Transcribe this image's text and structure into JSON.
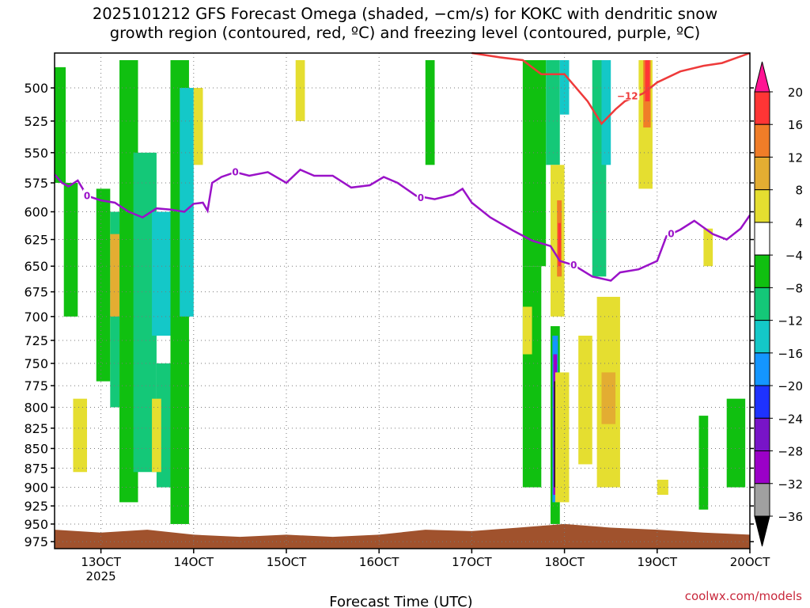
{
  "title_line1": "2025101212 GFS Forecast Omega (shaded, −cm/s) for KOKC with dendritic snow",
  "title_line2": "growth region (contoured, red, ºC) and freezing level (contoured, purple, ºC)",
  "credit": "coolwx.com/models",
  "colors": {
    "freezing_level": "#9a12c8",
    "dendritic": "#ee3a3a",
    "terrain": "#a0522d",
    "grid": "#7a7a7a"
  },
  "chart_data": {
    "type": "heatmap",
    "xlabel": "Forecast Time (UTC)",
    "x_ticks": [
      {
        "day": 13,
        "label": "13OCT",
        "sub": "2025"
      },
      {
        "day": 14,
        "label": "14OCT",
        "sub": ""
      },
      {
        "day": 15,
        "label": "15OCT",
        "sub": ""
      },
      {
        "day": 16,
        "label": "16OCT",
        "sub": ""
      },
      {
        "day": 17,
        "label": "17OCT",
        "sub": ""
      },
      {
        "day": 18,
        "label": "18OCT",
        "sub": ""
      },
      {
        "day": 19,
        "label": "19OCT",
        "sub": ""
      },
      {
        "day": 20,
        "label": "20OCT",
        "sub": ""
      }
    ],
    "xlim_days": [
      12.5,
      20
    ],
    "y_levels_hpa": [
      500,
      525,
      550,
      575,
      600,
      625,
      650,
      675,
      700,
      725,
      750,
      775,
      800,
      825,
      850,
      875,
      900,
      925,
      950,
      975
    ],
    "ylim_hpa": [
      475,
      985
    ],
    "y_scale": "log",
    "colorbar": {
      "labels": [
        "20",
        "16",
        "12",
        "8",
        "4",
        "−4",
        "−8",
        "−12",
        "−16",
        "−20",
        "−24",
        "−28",
        "−32",
        "−36"
      ],
      "colors": [
        "#ff1493",
        "#ff3535",
        "#f07d28",
        "#e3ad32",
        "#e5de30",
        "#ffffff",
        "#10c010",
        "#14c878",
        "#14c8c8",
        "#1496ff",
        "#1e32ff",
        "#7814c8",
        "#9b00c8",
        "#a0a0a0",
        "#000000"
      ]
    },
    "freezing_level_label": "0",
    "freezing_level_hpa": [
      [
        12.5,
        568
      ],
      [
        12.58,
        575
      ],
      [
        12.65,
        578
      ],
      [
        12.75,
        573
      ],
      [
        12.85,
        586
      ],
      [
        13.0,
        590
      ],
      [
        13.15,
        592
      ],
      [
        13.3,
        600
      ],
      [
        13.45,
        605
      ],
      [
        13.6,
        597
      ],
      [
        13.75,
        598
      ],
      [
        13.9,
        600
      ],
      [
        14.0,
        593
      ],
      [
        14.1,
        592
      ],
      [
        14.15,
        599
      ],
      [
        14.2,
        575
      ],
      [
        14.3,
        570
      ],
      [
        14.45,
        566
      ],
      [
        14.6,
        569
      ],
      [
        14.8,
        566
      ],
      [
        15.0,
        575
      ],
      [
        15.15,
        564
      ],
      [
        15.3,
        569
      ],
      [
        15.5,
        569
      ],
      [
        15.7,
        579
      ],
      [
        15.9,
        577
      ],
      [
        16.05,
        570
      ],
      [
        16.2,
        575
      ],
      [
        16.4,
        586
      ],
      [
        16.6,
        589
      ],
      [
        16.8,
        585
      ],
      [
        16.9,
        580
      ],
      [
        17.0,
        592
      ],
      [
        17.2,
        605
      ],
      [
        17.45,
        617
      ],
      [
        17.65,
        626
      ],
      [
        17.85,
        631
      ],
      [
        17.95,
        645
      ],
      [
        18.1,
        649
      ],
      [
        18.3,
        660
      ],
      [
        18.5,
        664
      ],
      [
        18.6,
        656
      ],
      [
        18.8,
        653
      ],
      [
        19.0,
        645
      ],
      [
        19.1,
        622
      ],
      [
        19.25,
        616
      ],
      [
        19.4,
        608
      ],
      [
        19.6,
        620
      ],
      [
        19.75,
        625
      ],
      [
        19.9,
        615
      ],
      [
        20.0,
        603
      ]
    ],
    "dendritic_label": "−12",
    "dendritic_hpa": [
      [
        17.0,
        475
      ],
      [
        17.3,
        478
      ],
      [
        17.55,
        480
      ],
      [
        17.75,
        490
      ],
      [
        18.0,
        490
      ],
      [
        18.25,
        510
      ],
      [
        18.4,
        527
      ],
      [
        18.55,
        516
      ],
      [
        18.65,
        510
      ],
      [
        18.85,
        504
      ],
      [
        19.0,
        496
      ],
      [
        19.25,
        488
      ],
      [
        19.5,
        484
      ],
      [
        19.7,
        482
      ],
      [
        20.0,
        475
      ]
    ],
    "omega_cells": [
      {
        "x0": 12.5,
        "x1": 12.62,
        "p0": 485,
        "p1": 575,
        "level": "-4"
      },
      {
        "x0": 12.6,
        "x1": 12.75,
        "p0": 575,
        "p1": 700,
        "level": "-4"
      },
      {
        "x0": 12.95,
        "x1": 13.1,
        "p0": 580,
        "p1": 770,
        "level": "-4"
      },
      {
        "x0": 13.1,
        "x1": 13.2,
        "p0": 600,
        "p1": 800,
        "level": "-8"
      },
      {
        "x0": 13.2,
        "x1": 13.4,
        "p0": 480,
        "p1": 920,
        "level": "-4"
      },
      {
        "x0": 13.35,
        "x1": 13.6,
        "p0": 550,
        "p1": 880,
        "level": "-8"
      },
      {
        "x0": 13.55,
        "x1": 13.75,
        "p0": 600,
        "p1": 720,
        "level": "-12"
      },
      {
        "x0": 13.6,
        "x1": 13.8,
        "p0": 750,
        "p1": 900,
        "level": "-8"
      },
      {
        "x0": 13.75,
        "x1": 13.95,
        "p0": 480,
        "p1": 950,
        "level": "-4"
      },
      {
        "x0": 13.85,
        "x1": 14.0,
        "p0": 500,
        "p1": 700,
        "level": "-12"
      },
      {
        "x0": 17.55,
        "x1": 17.75,
        "p0": 650,
        "p1": 900,
        "level": "-4"
      },
      {
        "x0": 17.55,
        "x1": 17.8,
        "p0": 480,
        "p1": 650,
        "level": "-4"
      },
      {
        "x0": 17.8,
        "x1": 17.95,
        "p0": 480,
        "p1": 560,
        "level": "-8"
      },
      {
        "x0": 17.95,
        "x1": 18.05,
        "p0": 480,
        "p1": 520,
        "level": "-12"
      },
      {
        "x0": 18.3,
        "x1": 18.45,
        "p0": 480,
        "p1": 660,
        "level": "-8"
      },
      {
        "x0": 18.4,
        "x1": 18.5,
        "p0": 480,
        "p1": 560,
        "level": "-12"
      },
      {
        "x0": 19.45,
        "x1": 19.55,
        "p0": 810,
        "p1": 930,
        "level": "-4"
      },
      {
        "x0": 19.75,
        "x1": 19.95,
        "p0": 790,
        "p1": 900,
        "level": "-4"
      },
      {
        "x0": 17.85,
        "x1": 17.95,
        "p0": 710,
        "p1": 950,
        "level": "-4"
      },
      {
        "x0": 17.87,
        "x1": 17.93,
        "p0": 720,
        "p1": 920,
        "level": "-16"
      },
      {
        "x0": 17.88,
        "x1": 17.92,
        "p0": 740,
        "p1": 910,
        "level": "-28"
      },
      {
        "x0": 17.89,
        "x1": 17.92,
        "p0": 770,
        "p1": 900,
        "level": "-36"
      },
      {
        "x0": 17.85,
        "x1": 18.0,
        "p0": 560,
        "p1": 700,
        "level": "4"
      },
      {
        "x0": 17.92,
        "x1": 17.97,
        "p0": 590,
        "p1": 660,
        "level": "12"
      },
      {
        "x0": 17.93,
        "x1": 17.96,
        "p0": 610,
        "p1": 650,
        "level": "16"
      },
      {
        "x0": 18.15,
        "x1": 18.3,
        "p0": 720,
        "p1": 870,
        "level": "4"
      },
      {
        "x0": 18.35,
        "x1": 18.6,
        "p0": 680,
        "p1": 900,
        "level": "4"
      },
      {
        "x0": 18.4,
        "x1": 18.55,
        "p0": 760,
        "p1": 820,
        "level": "8"
      },
      {
        "x0": 18.8,
        "x1": 18.95,
        "p0": 480,
        "p1": 580,
        "level": "4"
      },
      {
        "x0": 18.85,
        "x1": 18.93,
        "p0": 480,
        "p1": 530,
        "level": "12"
      },
      {
        "x0": 18.87,
        "x1": 18.92,
        "p0": 480,
        "p1": 510,
        "level": "16"
      },
      {
        "x0": 17.55,
        "x1": 17.65,
        "p0": 690,
        "p1": 740,
        "level": "4"
      },
      {
        "x0": 17.9,
        "x1": 18.05,
        "p0": 760,
        "p1": 920,
        "level": "4"
      },
      {
        "x0": 13.55,
        "x1": 13.65,
        "p0": 790,
        "p1": 880,
        "level": "4"
      },
      {
        "x0": 13.1,
        "x1": 13.2,
        "p0": 620,
        "p1": 700,
        "level": "8"
      },
      {
        "x0": 12.7,
        "x1": 12.85,
        "p0": 790,
        "p1": 880,
        "level": "4"
      },
      {
        "x0": 14.0,
        "x1": 14.1,
        "p0": 500,
        "p1": 560,
        "level": "4"
      },
      {
        "x0": 15.1,
        "x1": 15.2,
        "p0": 480,
        "p1": 525,
        "level": "4"
      },
      {
        "x0": 16.5,
        "x1": 16.6,
        "p0": 480,
        "p1": 560,
        "level": "-4"
      },
      {
        "x0": 19.0,
        "x1": 19.12,
        "p0": 890,
        "p1": 910,
        "level": "4"
      },
      {
        "x0": 19.5,
        "x1": 19.6,
        "p0": 615,
        "p1": 650,
        "level": "4"
      }
    ],
    "terrain_hpa": [
      [
        12.5,
        958
      ],
      [
        13.0,
        962
      ],
      [
        13.5,
        958
      ],
      [
        14.0,
        965
      ],
      [
        14.5,
        968
      ],
      [
        15.0,
        965
      ],
      [
        15.5,
        968
      ],
      [
        16.0,
        965
      ],
      [
        16.5,
        958
      ],
      [
        17.0,
        960
      ],
      [
        17.5,
        955
      ],
      [
        18.0,
        950
      ],
      [
        18.5,
        955
      ],
      [
        19.0,
        958
      ],
      [
        19.5,
        962
      ],
      [
        20.0,
        965
      ]
    ]
  }
}
